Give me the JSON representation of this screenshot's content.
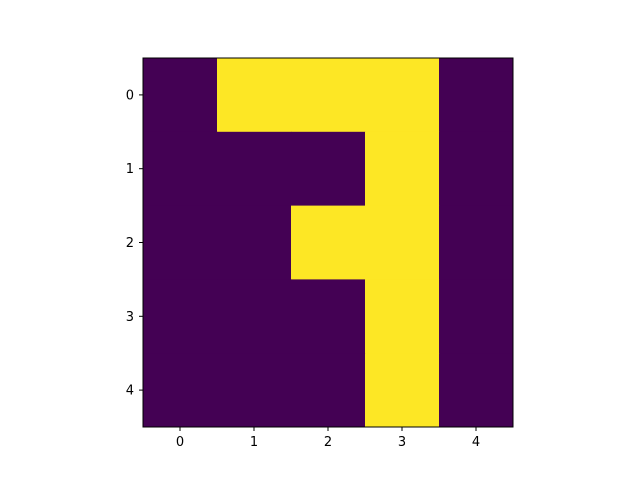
{
  "chart_data": {
    "type": "heatmap",
    "colormap": "viridis",
    "colors": {
      "low": "#440154",
      "high": "#fde725"
    },
    "x_ticks": [
      "0",
      "1",
      "2",
      "3",
      "4"
    ],
    "y_ticks": [
      "0",
      "1",
      "2",
      "3",
      "4"
    ],
    "xlim": [
      -0.5,
      4.5
    ],
    "ylim": [
      4.5,
      -0.5
    ],
    "grid": false,
    "values": [
      [
        0,
        1,
        1,
        1,
        0
      ],
      [
        0,
        0,
        0,
        1,
        0
      ],
      [
        0,
        0,
        1,
        1,
        0
      ],
      [
        0,
        0,
        0,
        1,
        0
      ],
      [
        0,
        0,
        0,
        1,
        0
      ]
    ]
  }
}
